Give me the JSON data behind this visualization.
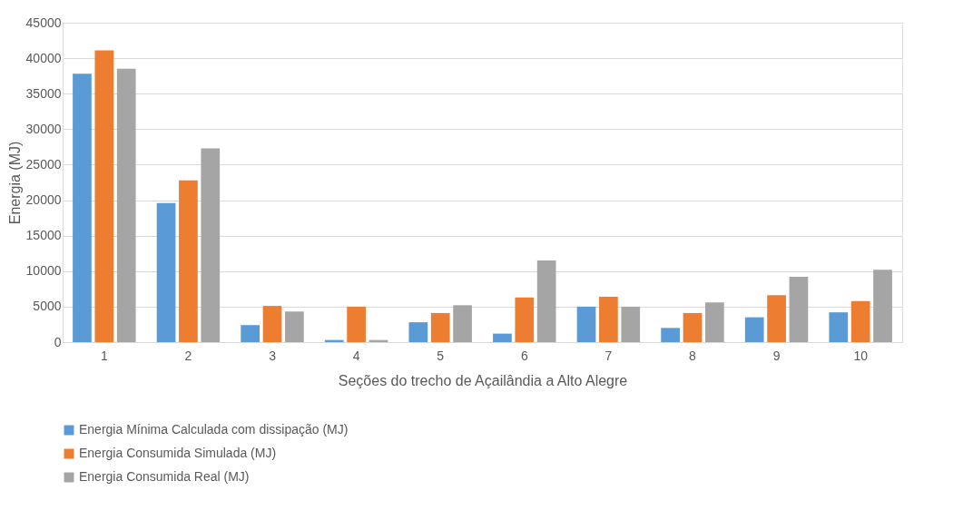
{
  "chart_data": {
    "type": "bar",
    "xlabel": "Seções do trecho de Açailândia a Alto Alegre",
    "ylabel": "Energia (MJ)",
    "categories": [
      "1",
      "2",
      "3",
      "4",
      "5",
      "6",
      "7",
      "8",
      "9",
      "10"
    ],
    "series": [
      {
        "name": "Energia Mínima Calculada com dissipação (MJ)",
        "color": "#5b9bd5",
        "values": [
          37800,
          19600,
          2400,
          300,
          2800,
          1200,
          5000,
          2000,
          3500,
          4200
        ]
      },
      {
        "name": "Energia Consumida Simulada (MJ)",
        "color": "#ed7d31",
        "values": [
          41100,
          22800,
          5100,
          5000,
          4100,
          6300,
          6400,
          4100,
          6600,
          5800
        ]
      },
      {
        "name": "Energia Consumida Real (MJ)",
        "color": "#a5a5a5",
        "values": [
          38500,
          27300,
          4300,
          300,
          5200,
          11500,
          5000,
          5600,
          9200,
          10200
        ]
      }
    ],
    "ylim": [
      0,
      45000
    ],
    "yticks": [
      0,
      5000,
      10000,
      15000,
      20000,
      25000,
      30000,
      35000,
      40000,
      45000
    ],
    "grid": "y",
    "legend": "bottom left"
  }
}
